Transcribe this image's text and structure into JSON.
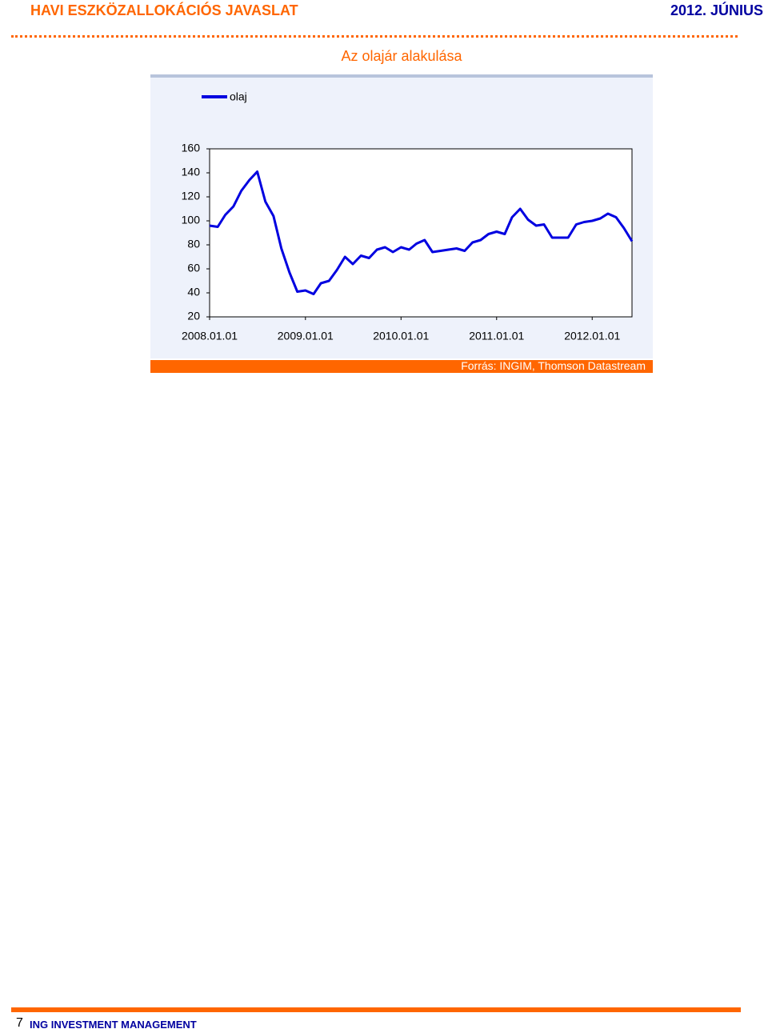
{
  "header": {
    "title": "HAVI ESZKÖZALLOKÁCIÓS JAVASLAT",
    "date": "2012. JÚNIUS"
  },
  "chart_data": {
    "type": "line",
    "title": "Az olajár alakulása",
    "x": [
      "2008.01.01",
      "2008.02.01",
      "2008.03.01",
      "2008.04.01",
      "2008.05.01",
      "2008.06.01",
      "2008.07.01",
      "2008.08.01",
      "2008.09.01",
      "2008.10.01",
      "2008.11.01",
      "2008.12.01",
      "2009.01.01",
      "2009.02.01",
      "2009.03.01",
      "2009.04.01",
      "2009.05.01",
      "2009.06.01",
      "2009.07.01",
      "2009.08.01",
      "2009.09.01",
      "2009.10.01",
      "2009.11.01",
      "2009.12.01",
      "2010.01.01",
      "2010.02.01",
      "2010.03.01",
      "2010.04.01",
      "2010.05.01",
      "2010.06.01",
      "2010.07.01",
      "2010.08.01",
      "2010.09.01",
      "2010.10.01",
      "2010.11.01",
      "2010.12.01",
      "2011.01.01",
      "2011.02.01",
      "2011.03.01",
      "2011.04.01",
      "2011.05.01",
      "2011.06.01",
      "2011.07.01",
      "2011.08.01",
      "2011.09.01",
      "2011.10.01",
      "2011.11.01",
      "2011.12.01",
      "2012.01.01",
      "2012.02.01",
      "2012.03.01",
      "2012.04.01",
      "2012.05.01",
      "2012.06.01"
    ],
    "series": [
      {
        "name": "olaj",
        "color": "#0000e0",
        "values": [
          96,
          95,
          105,
          112,
          125,
          134,
          141,
          116,
          104,
          77,
          57,
          41,
          42,
          39,
          48,
          50,
          59,
          70,
          64,
          71,
          69,
          76,
          78,
          74,
          78,
          76,
          81,
          84,
          74,
          75,
          76,
          77,
          75,
          82,
          84,
          89,
          91,
          89,
          103,
          110,
          101,
          96,
          97,
          86,
          86,
          86,
          97,
          99,
          100,
          102,
          106,
          103,
          94,
          83
        ]
      }
    ],
    "xlim": [
      "2008.01.01",
      "2012.06.01"
    ],
    "xticks": [
      "2008.01.01",
      "2009.01.01",
      "2010.01.01",
      "2011.01.01",
      "2012.01.01"
    ],
    "ylim": [
      20,
      160
    ],
    "yticks": [
      20,
      40,
      60,
      80,
      100,
      120,
      140,
      160
    ],
    "grid": false
  },
  "source": "Forrás: INGIM, Thomson Datastream",
  "footer": {
    "page": "7",
    "company": "ING INVESTMENT MANAGEMENT"
  }
}
